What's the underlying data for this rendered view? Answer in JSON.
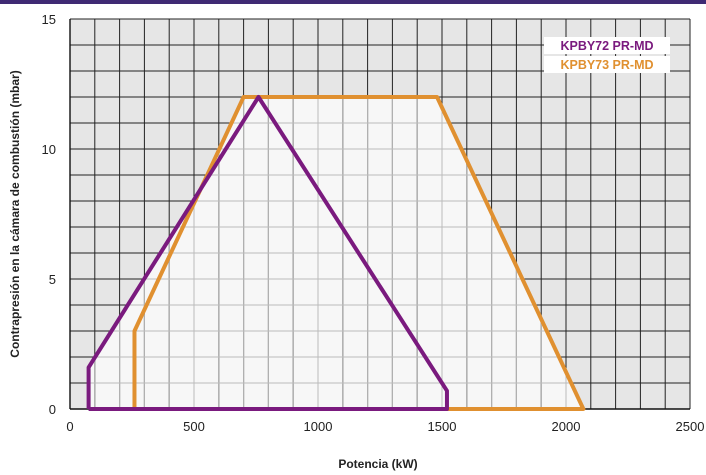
{
  "colors": {
    "top_rule": "#3f2a73",
    "grid_dark": "#222222",
    "grid_light": "#bbbbbb",
    "outside_fill": "#e6e6e6",
    "inside_fill": "#f7f7f7"
  },
  "chart_data": {
    "type": "line",
    "title": "",
    "xlabel": "Potencia (kW)",
    "ylabel": "Contrapresión en la cámara de combustión (mbar)",
    "xlim": [
      0,
      2500
    ],
    "ylim": [
      0,
      15
    ],
    "xticks": [
      0,
      500,
      1000,
      1500,
      2000,
      2500
    ],
    "yticks": [
      0,
      5,
      10,
      15
    ],
    "grid": true,
    "legend_position": "top-right",
    "series": [
      {
        "name": "KPBY72 PR-MD",
        "color": "#7a1a7e",
        "points": [
          {
            "x": 75,
            "y": 0
          },
          {
            "x": 75,
            "y": 1.6
          },
          {
            "x": 760,
            "y": 12
          },
          {
            "x": 1520,
            "y": 0.7
          },
          {
            "x": 1520,
            "y": 0
          },
          {
            "x": 75,
            "y": 0
          }
        ]
      },
      {
        "name": "KPBY73 PR-MD",
        "color": "#e09030",
        "points": [
          {
            "x": 260,
            "y": 0
          },
          {
            "x": 260,
            "y": 3
          },
          {
            "x": 700,
            "y": 12
          },
          {
            "x": 1480,
            "y": 12
          },
          {
            "x": 2070,
            "y": 0
          },
          {
            "x": 260,
            "y": 0
          }
        ]
      }
    ]
  }
}
